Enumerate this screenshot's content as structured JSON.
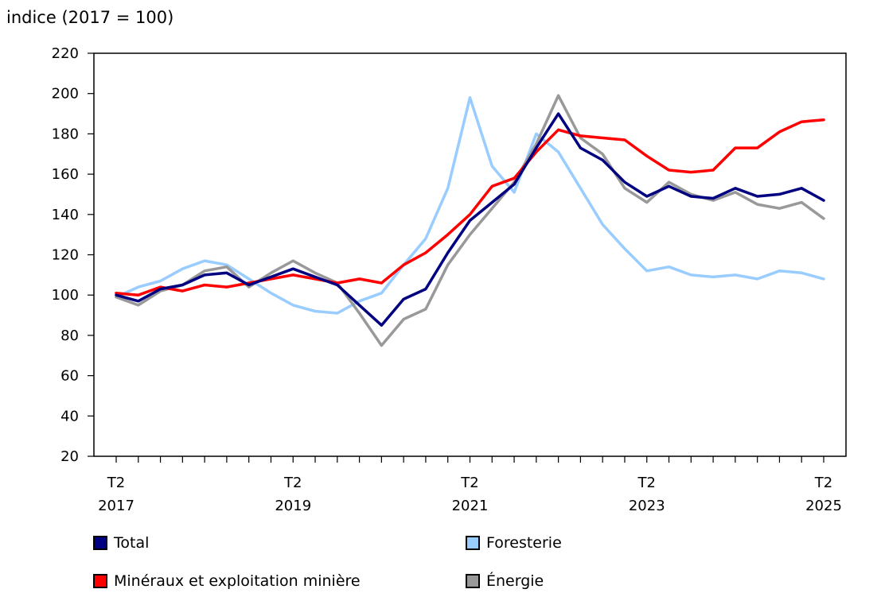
{
  "chart_data": {
    "type": "line",
    "title": "",
    "ylabel": "indice (2017 = 100)",
    "xlabel": "",
    "ylim": [
      20,
      220
    ],
    "yticks": [
      20,
      40,
      60,
      80,
      100,
      120,
      140,
      160,
      180,
      200,
      220
    ],
    "grid": false,
    "x": [
      "T2 2017",
      "T3 2017",
      "T4 2017",
      "T1 2018",
      "T2 2018",
      "T3 2018",
      "T4 2018",
      "T1 2019",
      "T2 2019",
      "T3 2019",
      "T4 2019",
      "T1 2020",
      "T2 2020",
      "T3 2020",
      "T4 2020",
      "T1 2021",
      "T2 2021",
      "T3 2021",
      "T4 2021",
      "T1 2022",
      "T2 2022",
      "T3 2022",
      "T4 2022",
      "T1 2023",
      "T2 2023",
      "T3 2023",
      "T4 2023",
      "T1 2024",
      "T2 2024",
      "T3 2024",
      "T4 2024",
      "T1 2025",
      "T2 2025"
    ],
    "xtick_labels": [
      {
        "index": 0,
        "line1": "T2",
        "line2": "2017"
      },
      {
        "index": 8,
        "line1": "T2",
        "line2": "2019"
      },
      {
        "index": 16,
        "line1": "T2",
        "line2": "2021"
      },
      {
        "index": 24,
        "line1": "T2",
        "line2": "2023"
      },
      {
        "index": 32,
        "line1": "T2",
        "line2": "2025"
      }
    ],
    "series": [
      {
        "name": "Foresterie",
        "color": "#99ccff",
        "values": [
          99,
          104,
          107,
          113,
          117,
          115,
          108,
          101,
          95,
          92,
          91,
          97,
          101,
          115,
          128,
          153,
          198,
          164,
          151,
          180,
          171,
          153,
          135,
          123,
          112,
          114,
          110,
          109,
          110,
          108,
          112,
          111,
          108
        ]
      },
      {
        "name": "Énergie",
        "color": "#999999",
        "values": [
          99,
          95,
          102,
          105,
          112,
          114,
          104,
          111,
          117,
          111,
          106,
          91,
          75,
          88,
          93,
          115,
          130,
          143,
          156,
          175,
          199,
          178,
          170,
          153,
          146,
          156,
          150,
          147,
          151,
          145,
          143,
          146,
          138
        ]
      },
      {
        "name": "Minéraux et exploitation minière",
        "color": "#ff0000",
        "values": [
          101,
          100,
          104,
          102,
          105,
          104,
          106,
          108,
          110,
          108,
          106,
          108,
          106,
          115,
          121,
          130,
          140,
          154,
          158,
          171,
          182,
          179,
          178,
          177,
          169,
          162,
          161,
          162,
          173,
          173,
          181,
          186,
          187
        ]
      },
      {
        "name": "Total",
        "color": "#000080",
        "values": [
          100,
          97,
          103,
          105,
          110,
          111,
          105,
          109,
          113,
          109,
          105,
          95,
          85,
          98,
          103,
          121,
          137,
          146,
          155,
          173,
          190,
          173,
          167,
          156,
          149,
          154,
          149,
          148,
          153,
          149,
          150,
          153,
          147
        ]
      }
    ]
  },
  "legend": {
    "items": [
      {
        "label": "Total",
        "color": "#000080"
      },
      {
        "label": "Foresterie",
        "color": "#99ccff"
      },
      {
        "label": "Minéraux et exploitation minière",
        "color": "#ff0000"
      },
      {
        "label": "Énergie",
        "color": "#999999"
      }
    ]
  }
}
